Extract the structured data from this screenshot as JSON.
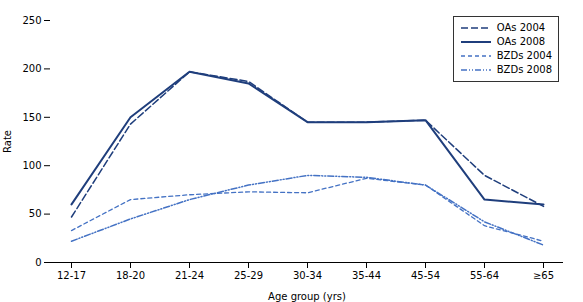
{
  "chart_data": {
    "type": "line",
    "categories": [
      "12-17",
      "18-20",
      "21-24",
      "25-29",
      "30-34",
      "35-44",
      "45-54",
      "55-64",
      "≥65"
    ],
    "series": [
      {
        "name": "OAs 2004",
        "color": "#1F3E7C",
        "line_style": "longdash",
        "values": [
          47,
          143,
          197,
          187,
          145,
          145,
          147,
          90,
          58
        ]
      },
      {
        "name": "OAs 2008",
        "color": "#1F3E7C",
        "line_style": "solid",
        "values": [
          60,
          150,
          197,
          185,
          145,
          145,
          147,
          65,
          60
        ]
      },
      {
        "name": "BZDs 2004",
        "color": "#4472C4",
        "line_style": "dashed",
        "values": [
          33,
          65,
          70,
          73,
          72,
          87,
          80,
          38,
          22
        ]
      },
      {
        "name": "BZDs 2008",
        "color": "#4472C4",
        "line_style": "dashdotdot",
        "values": [
          22,
          45,
          65,
          80,
          90,
          88,
          80,
          42,
          18
        ]
      }
    ],
    "xlabel": "Age group (yrs)",
    "ylabel": "Rate",
    "ylim": [
      0,
      250
    ],
    "yticks": [
      0,
      50,
      100,
      150,
      200,
      250
    ],
    "grid": false,
    "legend": "upper right"
  }
}
